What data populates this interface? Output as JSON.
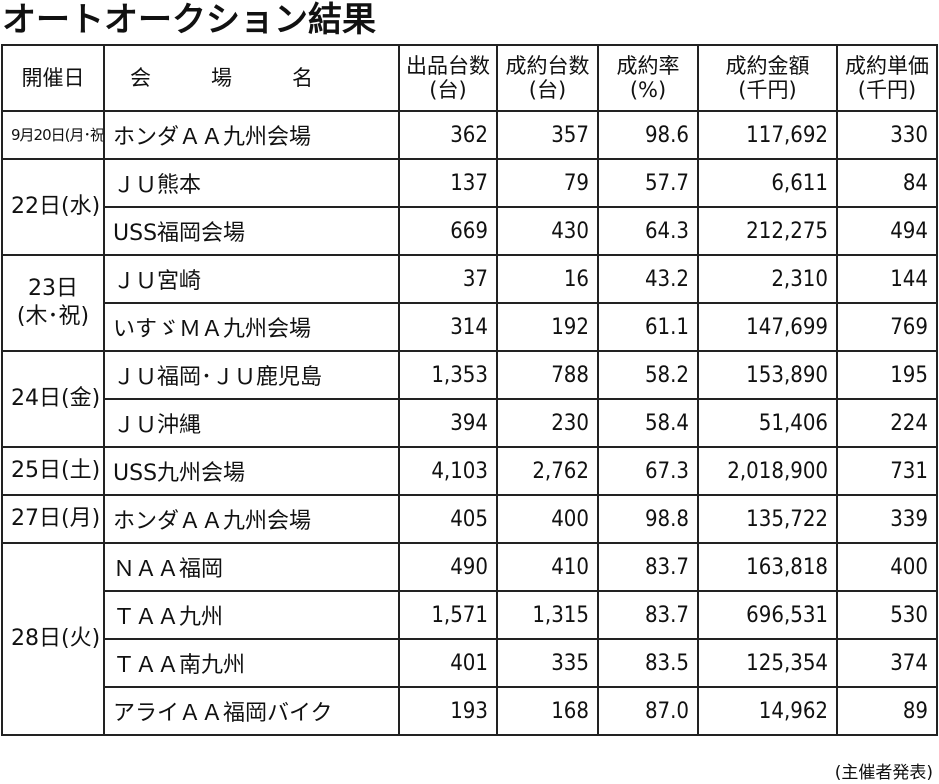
{
  "title": "オートオークション結果",
  "headers": [
    {
      "line1": "開催日",
      "line2": ""
    },
    {
      "line1": "会場名",
      "line2": ""
    },
    {
      "line1": "出品台数",
      "line2": "(台)"
    },
    {
      "line1": "成約台数",
      "line2": "(台)"
    },
    {
      "line1": "成約率",
      "line2": "(%)"
    },
    {
      "line1": "成約金額",
      "line2": "(千円)"
    },
    {
      "line1": "成約単価",
      "line2": "(千円)"
    }
  ],
  "groups": [
    {
      "date_line1": "9月20日(月･祝)",
      "date_line2": "",
      "rows": [
        {
          "venue": "ホンダＡＡ九州会場",
          "listed": "362",
          "sold": "357",
          "rate": "98.6",
          "amount": "117,692",
          "unit_price": "330"
        }
      ]
    },
    {
      "date_line1": "22日(水)",
      "date_line2": "",
      "rows": [
        {
          "venue": "ＪＵ熊本",
          "listed": "137",
          "sold": "79",
          "rate": "57.7",
          "amount": "6,611",
          "unit_price": "84"
        },
        {
          "venue": "USS福岡会場",
          "listed": "669",
          "sold": "430",
          "rate": "64.3",
          "amount": "212,275",
          "unit_price": "494"
        }
      ]
    },
    {
      "date_line1": "23日",
      "date_line2": "(木･祝)",
      "rows": [
        {
          "venue": "ＪＵ宮崎",
          "listed": "37",
          "sold": "16",
          "rate": "43.2",
          "amount": "2,310",
          "unit_price": "144"
        },
        {
          "venue": "いすゞＭＡ九州会場",
          "listed": "314",
          "sold": "192",
          "rate": "61.1",
          "amount": "147,699",
          "unit_price": "769"
        }
      ]
    },
    {
      "date_line1": "24日(金)",
      "date_line2": "",
      "rows": [
        {
          "venue": "ＪＵ福岡･ＪＵ鹿児島",
          "listed": "1,353",
          "sold": "788",
          "rate": "58.2",
          "amount": "153,890",
          "unit_price": "195"
        },
        {
          "venue": "ＪＵ沖縄",
          "listed": "394",
          "sold": "230",
          "rate": "58.4",
          "amount": "51,406",
          "unit_price": "224"
        }
      ]
    },
    {
      "date_line1": "25日(土)",
      "date_line2": "",
      "rows": [
        {
          "venue": "USS九州会場",
          "listed": "4,103",
          "sold": "2,762",
          "rate": "67.3",
          "amount": "2,018,900",
          "unit_price": "731"
        }
      ]
    },
    {
      "date_line1": "27日(月)",
      "date_line2": "",
      "rows": [
        {
          "venue": "ホンダＡＡ九州会場",
          "listed": "405",
          "sold": "400",
          "rate": "98.8",
          "amount": "135,722",
          "unit_price": "339"
        }
      ]
    },
    {
      "date_line1": "28日(火)",
      "date_line2": "",
      "rows": [
        {
          "venue": "ＮＡＡ福岡",
          "listed": "490",
          "sold": "410",
          "rate": "83.7",
          "amount": "163,818",
          "unit_price": "400"
        },
        {
          "venue": "ＴＡＡ九州",
          "listed": "1,571",
          "sold": "1,315",
          "rate": "83.7",
          "amount": "696,531",
          "unit_price": "530"
        },
        {
          "venue": "ＴＡＡ南九州",
          "listed": "401",
          "sold": "335",
          "rate": "83.5",
          "amount": "125,354",
          "unit_price": "374"
        },
        {
          "venue": "アライＡＡ福岡バイク",
          "listed": "193",
          "sold": "168",
          "rate": "87.0",
          "amount": "14,962",
          "unit_price": "89"
        }
      ]
    }
  ],
  "footer": "(主催者発表)"
}
